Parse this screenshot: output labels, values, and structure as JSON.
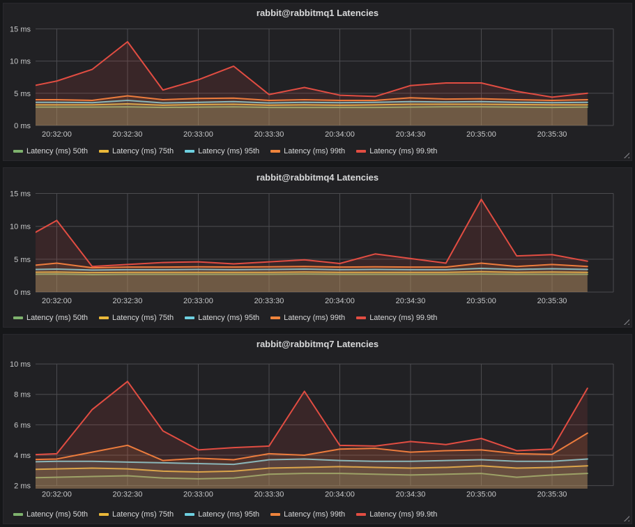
{
  "theme": {
    "page_bg": "#161719",
    "panel_bg": "#212124",
    "panel_border": "#29292d",
    "grid_color": "#4c4c50",
    "axis_text_color": "#c7c8c9",
    "title_color": "#d8d9da",
    "legend_text_color": "#d8d9da",
    "resize_handle_color": "#737378",
    "fill_opacity": 0.13
  },
  "time": {
    "x_tick_labels": [
      "20:32:00",
      "20:32:30",
      "20:33:00",
      "20:33:30",
      "20:34:00",
      "20:34:30",
      "20:35:00",
      "20:35:30"
    ],
    "x_tick_seconds": [
      15,
      45,
      75,
      105,
      135,
      165,
      195,
      225
    ],
    "point_seconds": [
      0,
      15,
      30,
      45,
      60,
      75,
      90,
      105,
      120,
      135,
      150,
      165,
      180,
      195,
      210,
      225,
      240
    ],
    "x_domain_seconds": [
      6,
      251
    ]
  },
  "chart_data": [
    {
      "type": "area",
      "title": "rabbit@rabbitmq1 Latencies",
      "y_unit": "ms",
      "y_ticks": [
        0,
        5,
        10,
        15
      ],
      "y_domain": [
        0,
        15.8
      ],
      "legend_position": "bottom",
      "grid": true,
      "series": [
        {
          "name": "Latency (ms) 50th",
          "color": "#7EB26D",
          "values": [
            2.85,
            2.85,
            2.85,
            2.9,
            2.8,
            2.85,
            2.9,
            2.8,
            2.8,
            2.8,
            2.8,
            2.85,
            2.9,
            2.9,
            2.85,
            2.8,
            2.85
          ]
        },
        {
          "name": "Latency (ms) 75th",
          "color": "#EAB839",
          "values": [
            3.2,
            3.2,
            3.2,
            3.35,
            3.15,
            3.25,
            3.3,
            3.15,
            3.2,
            3.15,
            3.2,
            3.3,
            3.3,
            3.3,
            3.25,
            3.2,
            3.2
          ]
        },
        {
          "name": "Latency (ms) 95th",
          "color": "#6ED0E0",
          "values": [
            3.6,
            3.6,
            3.55,
            3.9,
            3.5,
            3.6,
            3.7,
            3.5,
            3.6,
            3.55,
            3.6,
            3.7,
            3.65,
            3.7,
            3.6,
            3.55,
            3.6
          ]
        },
        {
          "name": "Latency (ms) 99th",
          "color": "#EF843C",
          "values": [
            4.0,
            4.0,
            3.9,
            4.6,
            4.0,
            4.2,
            4.25,
            3.9,
            4.0,
            3.9,
            3.9,
            4.3,
            4.1,
            4.15,
            4.0,
            3.9,
            4.0
          ]
        },
        {
          "name": "Latency (ms) 99.9th",
          "color": "#E24D42",
          "values": [
            5.8,
            6.9,
            8.7,
            13.0,
            5.5,
            7.1,
            9.2,
            4.8,
            5.9,
            4.7,
            4.5,
            6.2,
            6.6,
            6.6,
            5.3,
            4.4,
            5.0
          ]
        }
      ]
    },
    {
      "type": "area",
      "title": "rabbit@rabbitmq4 Latencies",
      "y_unit": "ms",
      "y_ticks": [
        0,
        5,
        10,
        15
      ],
      "y_domain": [
        0,
        15.8
      ],
      "legend_position": "bottom",
      "grid": true,
      "series": [
        {
          "name": "Latency (ms) 50th",
          "color": "#7EB26D",
          "values": [
            2.7,
            2.75,
            2.65,
            2.7,
            2.7,
            2.7,
            2.7,
            2.7,
            2.75,
            2.7,
            2.7,
            2.7,
            2.7,
            2.75,
            2.7,
            2.7,
            2.7
          ]
        },
        {
          "name": "Latency (ms) 75th",
          "color": "#EAB839",
          "values": [
            3.0,
            3.05,
            2.95,
            3.0,
            3.0,
            3.0,
            3.0,
            3.0,
            3.05,
            3.0,
            3.0,
            3.0,
            3.0,
            3.1,
            3.0,
            3.05,
            3.0
          ]
        },
        {
          "name": "Latency (ms) 95th",
          "color": "#6ED0E0",
          "values": [
            3.4,
            3.5,
            3.35,
            3.4,
            3.4,
            3.45,
            3.4,
            3.45,
            3.5,
            3.4,
            3.45,
            3.4,
            3.4,
            3.6,
            3.45,
            3.55,
            3.45
          ]
        },
        {
          "name": "Latency (ms) 99th",
          "color": "#EF843C",
          "values": [
            3.9,
            4.4,
            3.7,
            3.8,
            3.8,
            3.85,
            3.8,
            3.85,
            3.9,
            3.8,
            3.85,
            3.8,
            3.8,
            4.4,
            3.9,
            4.2,
            3.9
          ]
        },
        {
          "name": "Latency (ms) 99.9th",
          "color": "#E24D42",
          "values": [
            7.9,
            10.9,
            3.9,
            4.2,
            4.5,
            4.6,
            4.3,
            4.6,
            4.9,
            4.35,
            5.8,
            5.1,
            4.4,
            14.1,
            5.5,
            5.7,
            4.7
          ]
        }
      ]
    },
    {
      "type": "area",
      "title": "rabbit@rabbitmq7 Latencies",
      "y_unit": "ms",
      "y_ticks": [
        2,
        4,
        6,
        8,
        10
      ],
      "y_domain": [
        1.8,
        10.6
      ],
      "legend_position": "bottom",
      "grid": true,
      "series": [
        {
          "name": "Latency (ms) 50th",
          "color": "#7EB26D",
          "values": [
            2.5,
            2.55,
            2.6,
            2.65,
            2.5,
            2.45,
            2.5,
            2.75,
            2.8,
            2.8,
            2.75,
            2.7,
            2.75,
            2.8,
            2.55,
            2.7,
            2.8
          ]
        },
        {
          "name": "Latency (ms) 75th",
          "color": "#EAB839",
          "values": [
            3.05,
            3.1,
            3.15,
            3.1,
            2.95,
            2.9,
            2.95,
            3.15,
            3.2,
            3.25,
            3.2,
            3.15,
            3.2,
            3.3,
            3.15,
            3.2,
            3.3
          ]
        },
        {
          "name": "Latency (ms) 95th",
          "color": "#6ED0E0",
          "values": [
            3.55,
            3.6,
            3.6,
            3.55,
            3.5,
            3.45,
            3.4,
            3.7,
            3.75,
            3.65,
            3.6,
            3.6,
            3.65,
            3.7,
            3.6,
            3.6,
            3.75
          ]
        },
        {
          "name": "Latency (ms) 99th",
          "color": "#EF843C",
          "values": [
            3.7,
            3.75,
            4.2,
            4.65,
            3.65,
            3.8,
            3.7,
            4.1,
            4.0,
            4.4,
            4.45,
            4.2,
            4.3,
            4.35,
            4.1,
            4.05,
            5.45
          ]
        },
        {
          "name": "Latency (ms) 99.9th",
          "color": "#E24D42",
          "values": [
            4.0,
            4.1,
            7.0,
            8.85,
            5.6,
            4.35,
            4.5,
            4.6,
            8.2,
            4.65,
            4.6,
            4.9,
            4.7,
            5.1,
            4.3,
            4.4,
            8.4
          ]
        }
      ]
    }
  ]
}
